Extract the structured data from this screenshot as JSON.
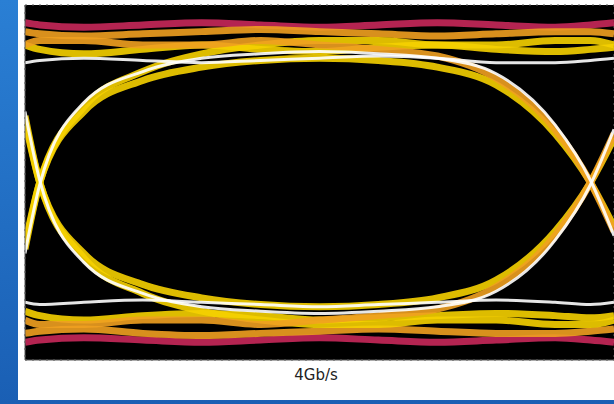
{
  "chart_data": {
    "type": "line",
    "title": "4Gb/s",
    "tick_labels": false,
    "grid": true,
    "xlim": [
      0,
      10
    ],
    "ylim": [
      -4,
      4
    ],
    "xticks": [
      0,
      1,
      2,
      3,
      4,
      5,
      6,
      7,
      8,
      9,
      10
    ],
    "yticks": [
      -4,
      -3,
      -2,
      -1,
      0,
      1,
      2,
      3,
      4
    ],
    "x": [
      0,
      0.25,
      1,
      2,
      3,
      4,
      5,
      6,
      7,
      8,
      9,
      9.6,
      10
    ],
    "series": [
      {
        "color": "#c8285a",
        "values": [
          3.6,
          3.55,
          3.5,
          3.55,
          3.6,
          3.55,
          3.5,
          3.55,
          3.6,
          3.55,
          3.5,
          3.55,
          3.6
        ]
      },
      {
        "color": "#c8285a",
        "values": [
          -3.6,
          -3.55,
          -3.5,
          -3.55,
          -3.6,
          -3.55,
          -3.5,
          -3.55,
          -3.6,
          -3.55,
          -3.5,
          -3.55,
          -3.6
        ]
      },
      {
        "color": "#f0a020",
        "values": [
          3.4,
          3.35,
          3.3,
          3.35,
          3.4,
          3.45,
          3.4,
          3.35,
          3.3,
          3.35,
          3.4,
          3.4,
          3.35
        ]
      },
      {
        "color": "#f0a020",
        "values": [
          -3.4,
          -3.35,
          -3.3,
          -3.4,
          -3.45,
          -3.4,
          -3.35,
          -3.3,
          -3.35,
          -3.4,
          -3.4,
          -3.35,
          -3.3
        ]
      },
      {
        "color": "#f5d000",
        "values": [
          3.1,
          3.0,
          2.9,
          3.0,
          3.1,
          3.0,
          2.95,
          3.05,
          3.1,
          3.0,
          2.95,
          3.0,
          3.05
        ]
      },
      {
        "color": "#f5d000",
        "values": [
          -2.9,
          -3.0,
          -3.1,
          -3.0,
          -2.95,
          -3.0,
          -3.1,
          -3.05,
          -3.0,
          -2.95,
          -3.0,
          -3.05,
          -3.0
        ]
      },
      {
        "color": "#f5d000",
        "values": [
          -1.4,
          0,
          1.6,
          2.3,
          2.6,
          2.75,
          2.8,
          2.75,
          2.6,
          2.2,
          1.1,
          0,
          -1.0
        ]
      },
      {
        "color": "#f5d000",
        "values": [
          1.4,
          0,
          -1.6,
          -2.3,
          -2.6,
          -2.75,
          -2.8,
          -2.75,
          -2.6,
          -2.2,
          -1.1,
          0,
          1.0
        ]
      },
      {
        "color": "#f5d000",
        "values": [
          -1.5,
          0,
          1.7,
          2.5,
          2.9,
          3.1,
          3.2,
          3.2,
          3.1,
          3.1,
          3.2,
          3.2,
          3.1
        ]
      },
      {
        "color": "#f5d000",
        "values": [
          1.5,
          0,
          -1.7,
          -2.5,
          -2.9,
          -3.1,
          -3.2,
          -3.2,
          -3.1,
          -3.1,
          -3.2,
          -3.2,
          -3.1
        ]
      },
      {
        "color": "#f0a020",
        "values": [
          3.1,
          3.2,
          3.2,
          3.1,
          3.1,
          3.2,
          3.1,
          3.0,
          2.85,
          2.35,
          1.2,
          0,
          -1.1
        ]
      },
      {
        "color": "#f0a020",
        "values": [
          -3.1,
          -3.2,
          -3.2,
          -3.1,
          -3.1,
          -3.2,
          -3.1,
          -3.0,
          -2.85,
          -2.35,
          -1.2,
          0,
          1.1
        ]
      },
      {
        "color": "#ffffff",
        "values": [
          2.7,
          2.75,
          2.8,
          2.75,
          2.7,
          2.75,
          2.8,
          2.85,
          2.8,
          2.7,
          2.7,
          2.75,
          2.8
        ]
      },
      {
        "color": "#ffffff",
        "values": [
          -2.7,
          -2.75,
          -2.7,
          -2.65,
          -2.7,
          -2.75,
          -2.8,
          -2.75,
          -2.7,
          -2.65,
          -2.7,
          -2.75,
          -2.7
        ]
      },
      {
        "color": "#ffffff",
        "values": [
          -1.6,
          -0.05,
          1.8,
          2.5,
          2.8,
          2.9,
          2.95,
          2.9,
          2.8,
          2.45,
          1.3,
          0.05,
          -1.2
        ]
      },
      {
        "color": "#ffffff",
        "values": [
          1.6,
          0.05,
          -1.8,
          -2.5,
          -2.8,
          -2.9,
          -2.95,
          -2.9,
          -2.8,
          -2.45,
          -1.3,
          -0.05,
          1.2
        ]
      }
    ]
  }
}
